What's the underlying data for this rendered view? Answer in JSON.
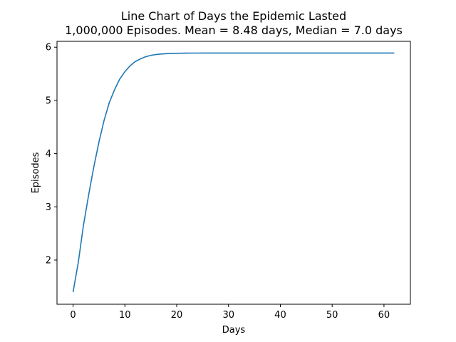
{
  "chart_data": {
    "type": "line",
    "title": "Line Chart of Days the Epidemic Lasted",
    "subtitle": "1,000,000 Episodes. Mean = 8.48 days, Median = 7.0 days",
    "xlabel": "Days",
    "ylabel": "Episodes",
    "xlim": [
      -3.1,
      65.1
    ],
    "ylim": [
      1.17,
      6.11
    ],
    "xticks": [
      0,
      10,
      20,
      30,
      40,
      50,
      60
    ],
    "yticks": [
      2,
      3,
      4,
      5,
      6
    ],
    "grid": false,
    "line_color": "#1f77b4",
    "series": [
      {
        "x": [
          0,
          1,
          2,
          3,
          4,
          5,
          6,
          7,
          8,
          9,
          10,
          11,
          12,
          13,
          14,
          15,
          16,
          17,
          18,
          19,
          20,
          21,
          22,
          23,
          24,
          25,
          26,
          27,
          28,
          29,
          30,
          31,
          32,
          33,
          34,
          35,
          36,
          37,
          38,
          39,
          40,
          41,
          42,
          43,
          44,
          45,
          46,
          47,
          48,
          49,
          50,
          51,
          52,
          53,
          54,
          55,
          56,
          57,
          58,
          59,
          60,
          61,
          62
        ],
        "values": [
          1.4,
          1.95,
          2.65,
          3.22,
          3.75,
          4.22,
          4.63,
          4.96,
          5.2,
          5.4,
          5.54,
          5.65,
          5.73,
          5.78,
          5.82,
          5.846,
          5.862,
          5.872,
          5.878,
          5.882,
          5.885,
          5.887,
          5.888,
          5.889,
          5.889,
          5.89,
          5.89,
          5.89,
          5.89,
          5.89,
          5.89,
          5.89,
          5.89,
          5.89,
          5.89,
          5.89,
          5.89,
          5.89,
          5.89,
          5.89,
          5.89,
          5.89,
          5.89,
          5.89,
          5.89,
          5.89,
          5.89,
          5.89,
          5.89,
          5.89,
          5.89,
          5.89,
          5.89,
          5.89,
          5.89,
          5.89,
          5.89,
          5.89,
          5.89,
          5.89,
          5.89,
          5.89,
          5.89
        ]
      }
    ]
  }
}
